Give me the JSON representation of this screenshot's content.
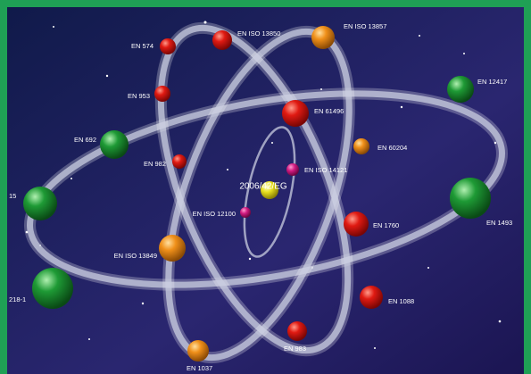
{
  "center": {
    "label": "2006/42/EG"
  },
  "nodes": [
    {
      "label": "EN 574"
    },
    {
      "label": "EN ISO 13850"
    },
    {
      "label": "EN ISO 13857"
    },
    {
      "label": "EN 12417"
    },
    {
      "label": "EN 953"
    },
    {
      "label": "EN 61496"
    },
    {
      "label": "EN 692"
    },
    {
      "label": "EN 60204"
    },
    {
      "label": "EN 982"
    },
    {
      "label": "EN ISO 14121"
    },
    {
      "label": "15"
    },
    {
      "label": "EN ISO 12100"
    },
    {
      "label": "EN 1493"
    },
    {
      "label": "EN 1760"
    },
    {
      "label": "EN ISO 13849"
    },
    {
      "label": "218-1"
    },
    {
      "label": "EN 1088"
    },
    {
      "label": "EN 983"
    },
    {
      "label": "EN 1037"
    }
  ]
}
